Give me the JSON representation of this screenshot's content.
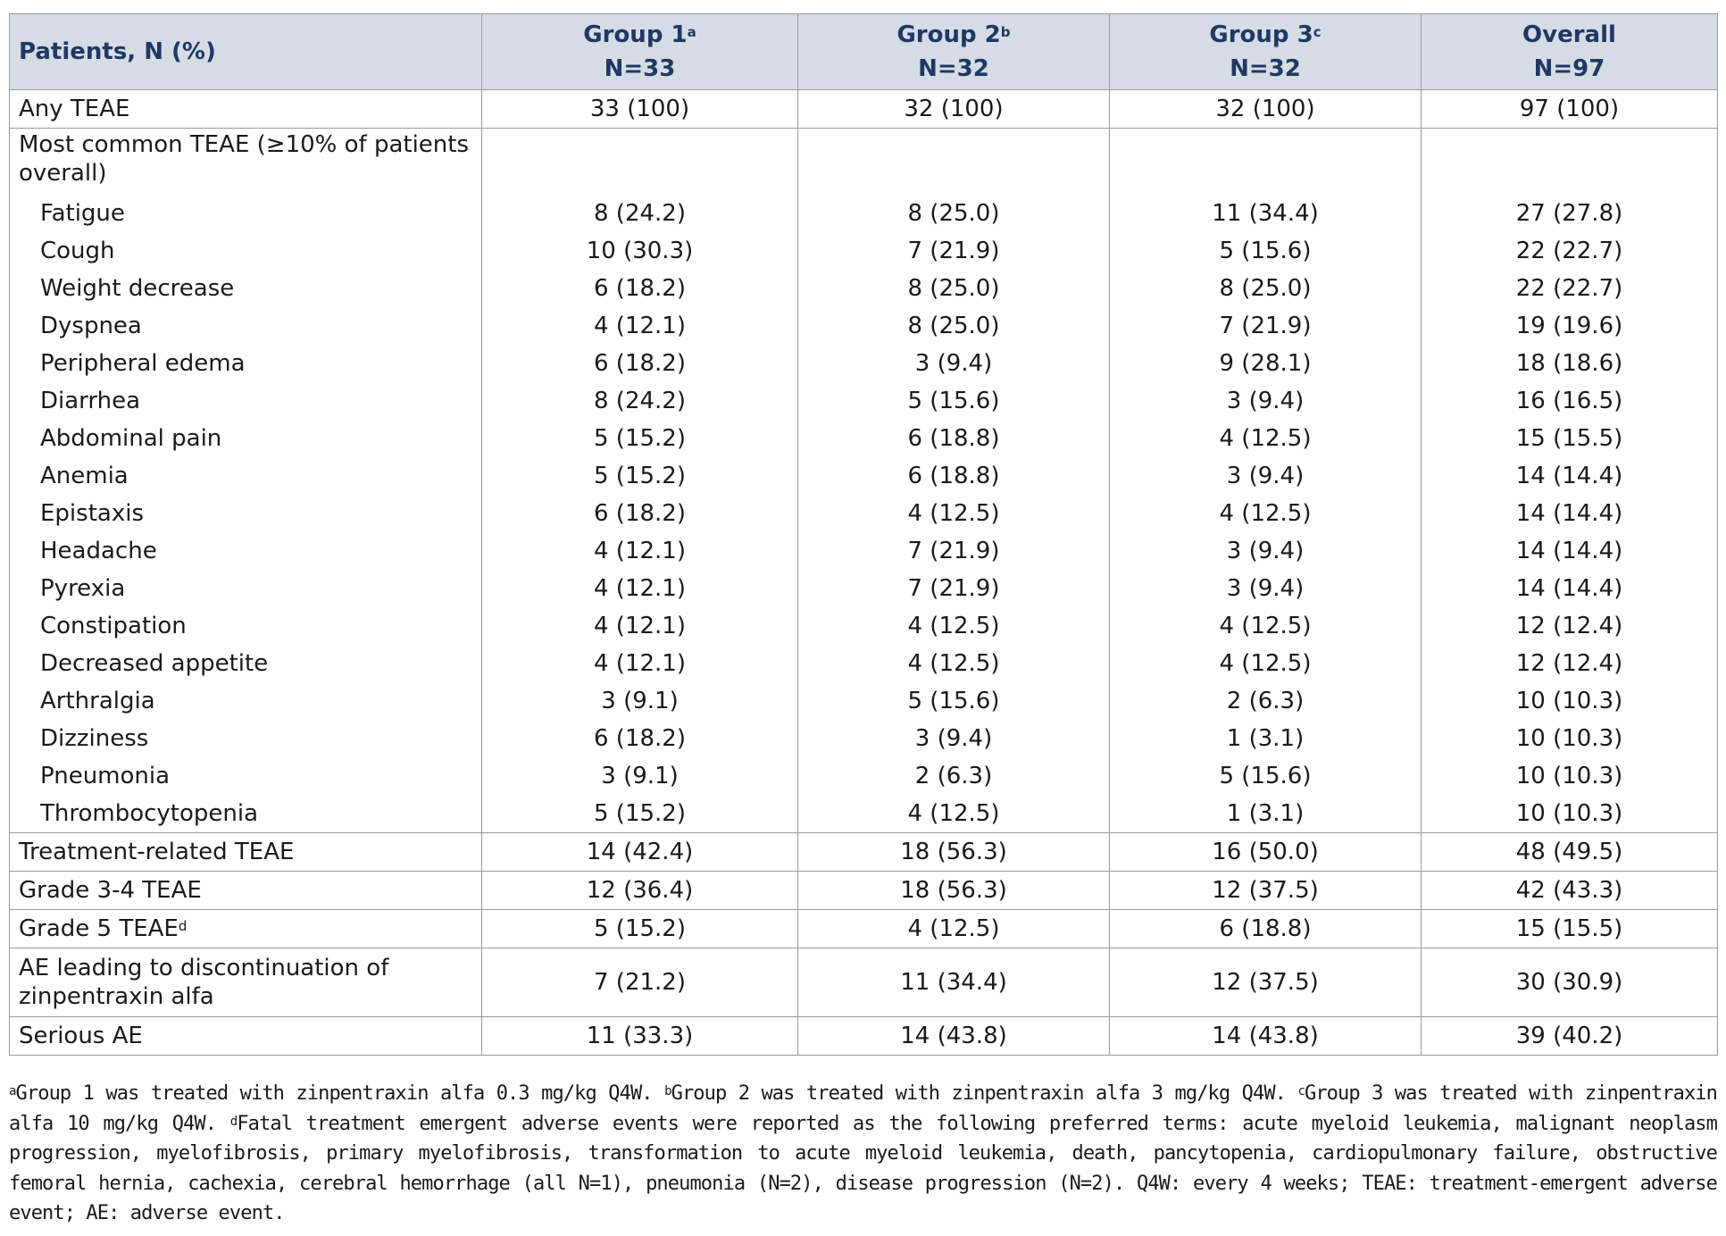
{
  "table": {
    "header": [
      {
        "text": "Patients, N (%)"
      },
      {
        "text": "Group 1",
        "sup": "a",
        "n": "N=33"
      },
      {
        "text": "Group 2",
        "sup": "b",
        "n": "N=32"
      },
      {
        "text": "Group 3",
        "sup": "c",
        "n": "N=32"
      },
      {
        "text": "Overall",
        "n": "N=97"
      }
    ],
    "rows": [
      {
        "label": "Any TEAE",
        "values": [
          "33 (100)",
          "32 (100)",
          "32 (100)",
          "97 (100)"
        ]
      },
      {
        "label": "Most common TEAE (≥10% of patients overall)",
        "items": [
          {
            "label": "Fatigue",
            "values": [
              "8 (24.2)",
              "8 (25.0)",
              "11 (34.4)",
              "27 (27.8)"
            ]
          },
          {
            "label": "Cough",
            "values": [
              "10 (30.3)",
              "7 (21.9)",
              "5 (15.6)",
              "22 (22.7)"
            ]
          },
          {
            "label": "Weight decrease",
            "values": [
              "6 (18.2)",
              "8 (25.0)",
              "8 (25.0)",
              "22 (22.7)"
            ]
          },
          {
            "label": "Dyspnea",
            "values": [
              "4 (12.1)",
              "8 (25.0)",
              "7 (21.9)",
              "19 (19.6)"
            ]
          },
          {
            "label": "Peripheral edema",
            "values": [
              "6 (18.2)",
              "3 (9.4)",
              "9 (28.1)",
              "18 (18.6)"
            ]
          },
          {
            "label": "Diarrhea",
            "values": [
              "8 (24.2)",
              "5 (15.6)",
              "3 (9.4)",
              "16 (16.5)"
            ]
          },
          {
            "label": "Abdominal pain",
            "values": [
              "5 (15.2)",
              "6 (18.8)",
              "4 (12.5)",
              "15 (15.5)"
            ]
          },
          {
            "label": "Anemia",
            "values": [
              "5 (15.2)",
              "6 (18.8)",
              "3 (9.4)",
              "14 (14.4)"
            ]
          },
          {
            "label": "Epistaxis",
            "values": [
              "6 (18.2)",
              "4 (12.5)",
              "4 (12.5)",
              "14 (14.4)"
            ]
          },
          {
            "label": "Headache",
            "values": [
              "4 (12.1)",
              "7 (21.9)",
              "3 (9.4)",
              "14 (14.4)"
            ]
          },
          {
            "label": "Pyrexia",
            "values": [
              "4 (12.1)",
              "7 (21.9)",
              "3 (9.4)",
              "14 (14.4)"
            ]
          },
          {
            "label": "Constipation",
            "values": [
              "4 (12.1)",
              "4 (12.5)",
              "4 (12.5)",
              "12 (12.4)"
            ]
          },
          {
            "label": "Decreased appetite",
            "values": [
              "4 (12.1)",
              "4 (12.5)",
              "4 (12.5)",
              "12 (12.4)"
            ]
          },
          {
            "label": "Arthralgia",
            "values": [
              "3 (9.1)",
              "5 (15.6)",
              "2 (6.3)",
              "10 (10.3)"
            ]
          },
          {
            "label": "Dizziness",
            "values": [
              "6 (18.2)",
              "3 (9.4)",
              "1 (3.1)",
              "10 (10.3)"
            ]
          },
          {
            "label": "Pneumonia",
            "values": [
              "3 (9.1)",
              "2 (6.3)",
              "5 (15.6)",
              "10 (10.3)"
            ]
          },
          {
            "label": "Thrombocytopenia",
            "values": [
              "5 (15.2)",
              "4 (12.5)",
              "1 (3.1)",
              "10 (10.3)"
            ]
          }
        ]
      },
      {
        "label": "Treatment-related TEAE",
        "values": [
          "14 (42.4)",
          "18 (56.3)",
          "16 (50.0)",
          "48 (49.5)"
        ]
      },
      {
        "label": "Grade 3-4 TEAE",
        "values": [
          "12 (36.4)",
          "18 (56.3)",
          "12 (37.5)",
          "42 (43.3)"
        ]
      },
      {
        "label": "Grade 5 TEAE",
        "sup": "d",
        "values": [
          "5 (15.2)",
          "4 (12.5)",
          "6 (18.8)",
          "15 (15.5)"
        ]
      },
      {
        "label": "AE leading to discontinuation of zinpentraxin alfa",
        "values": [
          "7 (21.2)",
          "11 (34.4)",
          "12 (37.5)",
          "30 (30.9)"
        ]
      },
      {
        "label": "Serious AE",
        "values": [
          "11 (33.3)",
          "14 (43.8)",
          "14 (43.8)",
          "39 (40.2)"
        ]
      }
    ]
  },
  "footnotes": [
    {
      "sup": "a",
      "text": "Group 1 was treated with zinpentraxin alfa 0.3 mg/kg Q4W."
    },
    {
      "sup": "b",
      "text": "Group 2 was treated with zinpentraxin alfa 3 mg/kg Q4W."
    },
    {
      "sup": "c",
      "text": "Group 3 was treated with zinpentraxin alfa 10 mg/kg Q4W."
    },
    {
      "sup": "d",
      "text": "Fatal treatment emergent adverse events were reported as the following preferred terms: acute myeloid leukemia, malignant neoplasm progression, myelofibrosis, primary myelofibrosis, transformation to acute myeloid leukemia, death, pancytopenia, cardiopulmonary failure, obstructive femoral hernia, cachexia, cerebral hemorrhage (all N=1), pneumonia (N=2), disease progression (N=2). Q4W: every 4 weeks; TEAE: treatment-emergent adverse event; AE: adverse event."
    }
  ]
}
